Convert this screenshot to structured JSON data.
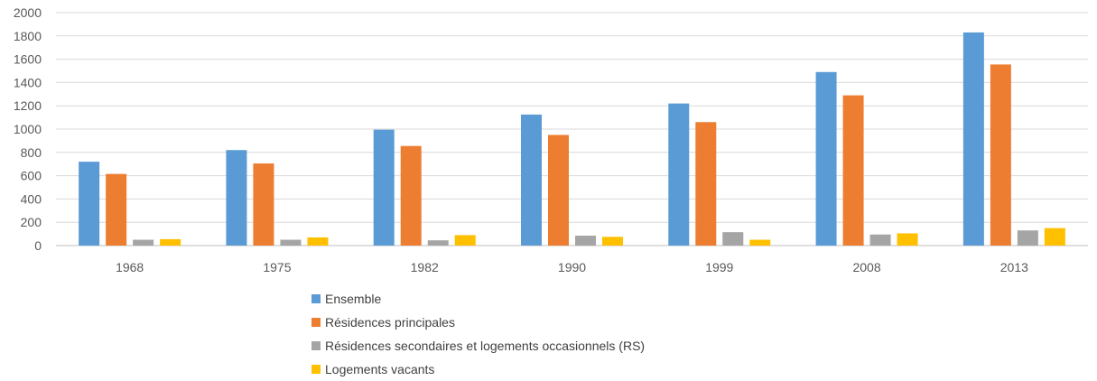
{
  "chart_data": {
    "type": "bar",
    "categories": [
      "1968",
      "1975",
      "1982",
      "1990",
      "1999",
      "2008",
      "2013"
    ],
    "series": [
      {
        "name": "Ensemble",
        "color": "#5B9BD5",
        "values": [
          720,
          820,
          995,
          1125,
          1220,
          1490,
          1830
        ]
      },
      {
        "name": "Résidences principales",
        "color": "#ED7D31",
        "values": [
          615,
          705,
          855,
          950,
          1060,
          1290,
          1555
        ]
      },
      {
        "name": "Résidences secondaires et logements occasionnels (RS)",
        "color": "#A5A5A5",
        "values": [
          50,
          50,
          45,
          85,
          115,
          95,
          130
        ]
      },
      {
        "name": "Logements vacants",
        "color": "#FFC000",
        "values": [
          55,
          70,
          90,
          75,
          50,
          105,
          150
        ]
      }
    ],
    "yticks": [
      "0",
      "200",
      "400",
      "600",
      "800",
      "1000",
      "1200",
      "1400",
      "1600",
      "1800",
      "2000"
    ],
    "ylim": [
      0,
      2000
    ],
    "grid": true,
    "legend_position": "bottom",
    "title": "",
    "xlabel": "",
    "ylabel": ""
  }
}
